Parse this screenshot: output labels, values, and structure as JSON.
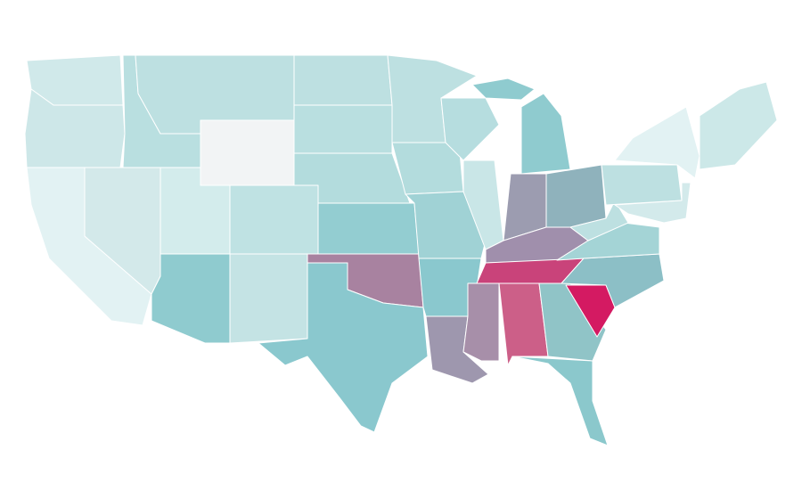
{
  "map": {
    "type": "choropleth",
    "stroke": "#ffffff",
    "regions": [
      {
        "color": "#d0e9ea"
      },
      {
        "color": "#cde7e8"
      },
      {
        "color": "#e2f2f3"
      },
      {
        "color": "#d3e9ea"
      },
      {
        "color": "#b9dfe0"
      },
      {
        "color": "#bde0e1"
      },
      {
        "color": "#f2f4f5"
      },
      {
        "color": "#d3ecec"
      },
      {
        "color": "#bfe2e3"
      },
      {
        "color": "#8fcbcf"
      },
      {
        "color": "#c4e3e4"
      },
      {
        "color": "#bde0e1"
      },
      {
        "color": "#b9dfe0"
      },
      {
        "color": "#b3dcdd"
      },
      {
        "color": "#93cdd1"
      },
      {
        "color": "#a882a0"
      },
      {
        "color": "#8ac8ce"
      },
      {
        "color": "#bde0e1"
      },
      {
        "color": "#b3dcdd"
      },
      {
        "color": "#a0d2d5"
      },
      {
        "color": "#8ac8ce"
      },
      {
        "color": "#9e97ae"
      },
      {
        "color": "#b6dddf"
      },
      {
        "color": "#c9e6e7"
      },
      {
        "color": "#8fcbcf"
      },
      {
        "color": "#9c9cb0"
      },
      {
        "color": "#8fb2bc"
      },
      {
        "color": "#a08fac"
      },
      {
        "color": "#c9437a"
      },
      {
        "color": "#a78fa9"
      },
      {
        "color": "#cc5f88"
      },
      {
        "color": "#90c4c7"
      },
      {
        "color": "#8bc8cc"
      },
      {
        "color": "#d41a62"
      },
      {
        "color": "#8cbfc6"
      },
      {
        "color": "#a4d4d6"
      },
      {
        "color": "#bde0e1"
      },
      {
        "color": "#bde0e1"
      },
      {
        "color": "#e2f2f3"
      },
      {
        "color": "#cce8e8"
      },
      {
        "color": "#d3eaeb"
      },
      {
        "color": "#8fcbcf"
      }
    ]
  }
}
